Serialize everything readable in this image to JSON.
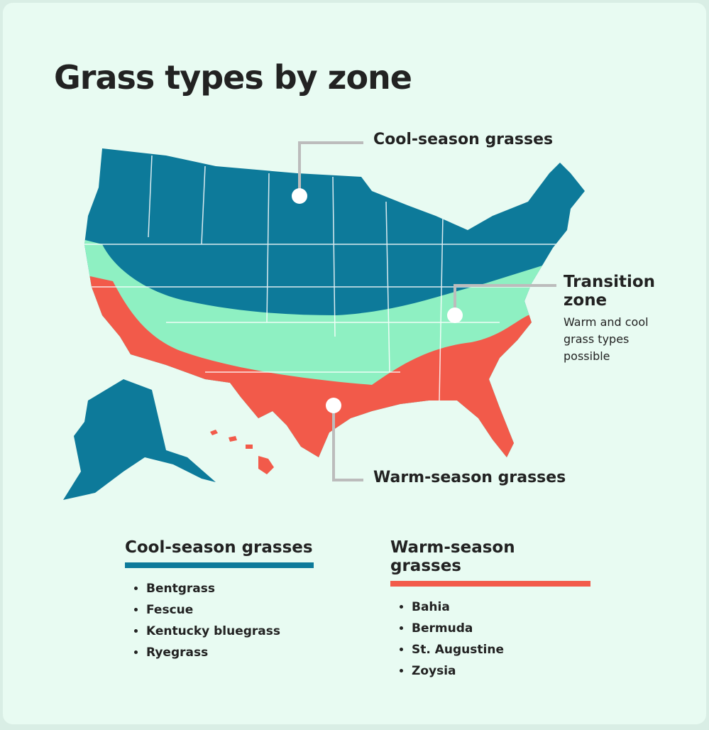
{
  "title": "Grass types by zone",
  "callouts": {
    "cool": "Cool-season grasses",
    "transition": {
      "title": "Transition zone",
      "note": "Warm and cool grass types possible"
    },
    "warm": "Warm-season grasses"
  },
  "legend": [
    {
      "heading": "Cool-season grasses",
      "color": "#0d7a9a",
      "items": [
        "Bentgrass",
        "Fescue",
        "Kentucky bluegrass",
        "Ryegrass"
      ]
    },
    {
      "heading": "Warm-season grasses",
      "color": "#f25a4a",
      "items": [
        "Bahia",
        "Bermuda",
        "St. Augustine",
        "Zoysia"
      ]
    }
  ]
}
